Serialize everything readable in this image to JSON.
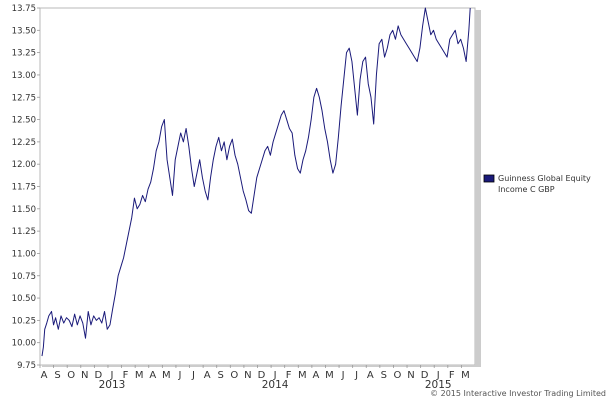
{
  "chart_data": {
    "type": "line",
    "title": "",
    "xlabel": "",
    "ylabel": "",
    "ylim": [
      9.75,
      13.75
    ],
    "y_ticks": [
      "9.75",
      "10.00",
      "10.25",
      "10.50",
      "10.75",
      "11.00",
      "11.25",
      "11.50",
      "11.75",
      "12.00",
      "12.25",
      "12.50",
      "12.75",
      "13.00",
      "13.25",
      "13.50",
      "13.75"
    ],
    "x_month_labels": [
      "A",
      "S",
      "O",
      "N",
      "D",
      "J",
      "F",
      "M",
      "A",
      "M",
      "J",
      "J",
      "A",
      "S",
      "O",
      "N",
      "D",
      "J",
      "F",
      "M",
      "A",
      "M",
      "J",
      "J",
      "A",
      "S",
      "O",
      "N",
      "D",
      "J",
      "F",
      "M"
    ],
    "x_year_labels": [
      {
        "label": "2013",
        "month_index": 5
      },
      {
        "label": "2014",
        "month_index": 17
      },
      {
        "label": "2015",
        "month_index": 29
      }
    ],
    "grid": false,
    "legend_position": "right",
    "series": [
      {
        "name": "Guinness Global Equity Income C GBP",
        "color": "#1a1a7a",
        "x_month_index": [
          0.0,
          0.1,
          0.2,
          0.35,
          0.5,
          0.7,
          0.85,
          1.0,
          1.2,
          1.4,
          1.6,
          1.8,
          2.0,
          2.2,
          2.4,
          2.6,
          2.8,
          3.0,
          3.2,
          3.4,
          3.6,
          3.8,
          4.0,
          4.2,
          4.4,
          4.6,
          4.8,
          5.0,
          5.2,
          5.4,
          5.6,
          5.8,
          6.0,
          6.2,
          6.4,
          6.6,
          6.8,
          7.0,
          7.2,
          7.4,
          7.6,
          7.8,
          8.0,
          8.2,
          8.4,
          8.6,
          8.8,
          9.0,
          9.2,
          9.4,
          9.6,
          9.8,
          10.0,
          10.2,
          10.4,
          10.6,
          10.8,
          11.0,
          11.2,
          11.4,
          11.6,
          11.8,
          12.0,
          12.2,
          12.4,
          12.6,
          12.8,
          13.0,
          13.2,
          13.4,
          13.6,
          13.8,
          14.0,
          14.2,
          14.4,
          14.6,
          14.8,
          15.0,
          15.2,
          15.4,
          15.6,
          15.8,
          16.0,
          16.2,
          16.4,
          16.6,
          16.8,
          17.0,
          17.2,
          17.4,
          17.6,
          17.8,
          18.0,
          18.2,
          18.4,
          18.6,
          18.8,
          19.0,
          19.2,
          19.4,
          19.6,
          19.8,
          20.0,
          20.2,
          20.4,
          20.6,
          20.8,
          21.0,
          21.2,
          21.4,
          21.6,
          21.8,
          22.0,
          22.2,
          22.4,
          22.6,
          22.8,
          23.0,
          23.2,
          23.4,
          23.6,
          23.8,
          24.0,
          24.2,
          24.4,
          24.6,
          24.8,
          25.0,
          25.2,
          25.4,
          25.6,
          25.8,
          26.0,
          26.2,
          26.4,
          26.6,
          26.8,
          27.0,
          27.2,
          27.4,
          27.6,
          27.8,
          28.0,
          28.2,
          28.4,
          28.6,
          28.8,
          29.0,
          29.2,
          29.4,
          29.6,
          29.8,
          30.0,
          30.2,
          30.4,
          30.6,
          30.8,
          31.0,
          31.2,
          31.4,
          31.5
        ],
        "values": [
          9.85,
          9.95,
          10.15,
          10.22,
          10.3,
          10.35,
          10.2,
          10.28,
          10.15,
          10.3,
          10.22,
          10.28,
          10.25,
          10.18,
          10.32,
          10.2,
          10.3,
          10.22,
          10.05,
          10.35,
          10.2,
          10.3,
          10.25,
          10.28,
          10.22,
          10.35,
          10.15,
          10.2,
          10.38,
          10.55,
          10.75,
          10.85,
          10.95,
          11.1,
          11.25,
          11.4,
          11.62,
          11.5,
          11.55,
          11.65,
          11.58,
          11.72,
          11.8,
          11.95,
          12.15,
          12.25,
          12.42,
          12.5,
          12.05,
          11.85,
          11.65,
          12.05,
          12.2,
          12.35,
          12.25,
          12.4,
          12.2,
          11.95,
          11.75,
          11.9,
          12.05,
          11.85,
          11.7,
          11.6,
          11.85,
          12.05,
          12.2,
          12.3,
          12.15,
          12.25,
          12.05,
          12.2,
          12.28,
          12.1,
          12.0,
          11.85,
          11.7,
          11.6,
          11.48,
          11.45,
          11.65,
          11.85,
          11.95,
          12.05,
          12.15,
          12.2,
          12.1,
          12.25,
          12.35,
          12.45,
          12.55,
          12.6,
          12.5,
          12.4,
          12.35,
          12.1,
          11.95,
          11.9,
          12.05,
          12.15,
          12.3,
          12.5,
          12.75,
          12.85,
          12.75,
          12.6,
          12.4,
          12.25,
          12.05,
          11.9,
          12.0,
          12.3,
          12.65,
          12.95,
          13.25,
          13.3,
          13.15,
          12.85,
          12.55,
          12.95,
          13.15,
          13.2,
          12.9,
          12.75,
          12.45,
          13.0,
          13.35,
          13.4,
          13.2,
          13.3,
          13.45,
          13.5,
          13.4,
          13.55,
          13.45,
          13.4,
          13.35,
          13.3,
          13.25,
          13.2,
          13.15,
          13.3,
          13.55,
          13.75,
          13.6,
          13.45,
          13.5,
          13.4,
          13.35,
          13.3,
          13.25,
          13.2,
          13.4,
          13.45,
          13.5,
          13.35,
          13.4,
          13.3,
          13.15,
          13.5,
          13.75,
          13.7,
          13.5,
          13.45,
          13.4,
          13.35
        ]
      }
    ]
  },
  "legend": {
    "line1": "Guinness Global Equity",
    "line2": "Income C GBP",
    "swatch_color": "#1a1a7a"
  },
  "footer": {
    "copyright": "© 2015 Interactive Investor Trading Limited"
  }
}
